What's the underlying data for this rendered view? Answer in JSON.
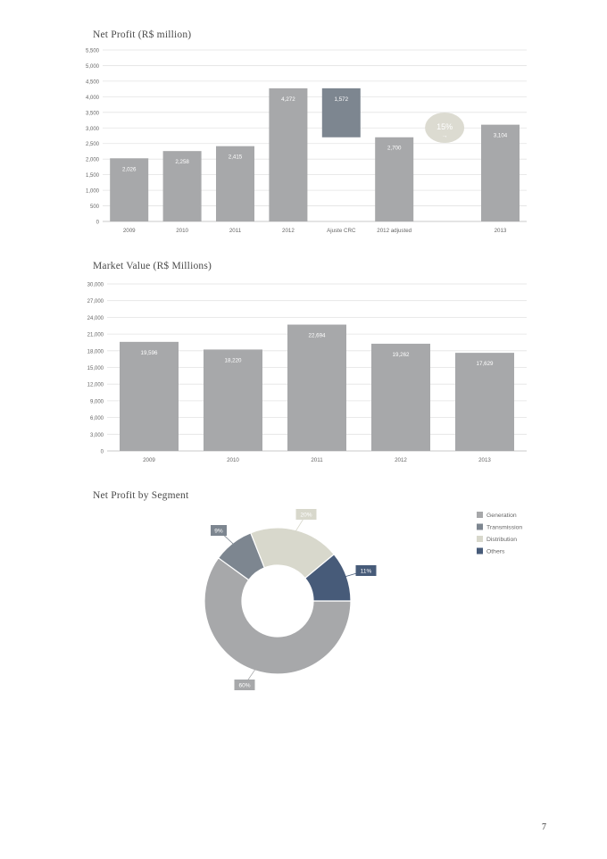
{
  "colors": {
    "bar": "#a7a8aa",
    "adjust": "#7d8690",
    "grid": "#e3e3e3",
    "axis_text": "#666666",
    "badge": "#dcdbd1",
    "generation": "#a7a8aa",
    "transmission": "#7d8690",
    "distribution": "#d8d8cc",
    "others": "#475b79"
  },
  "page_number": "7",
  "chart_data": [
    {
      "type": "bar",
      "title": "Net Profit (R$ million)",
      "categories": [
        "2009",
        "2010",
        "2011",
        "2012",
        "Ajuste CRC",
        "2012 adjusted",
        "",
        "2013"
      ],
      "values": [
        2026,
        2258,
        2415,
        4272,
        1572,
        2700,
        null,
        3104
      ],
      "value_labels": [
        "2,026",
        "2,258",
        "2,415",
        "4,272",
        "1,572",
        "2,700",
        "",
        "3,104"
      ],
      "waterfall_adjustment": {
        "category": "Ajuste CRC",
        "from": 4272,
        "to": 2700,
        "label": "1,572"
      },
      "ylim": [
        0,
        5500
      ],
      "yticks": [
        0,
        500,
        1000,
        1500,
        2000,
        2500,
        3000,
        3500,
        4000,
        4500,
        5000,
        5500
      ],
      "ytick_labels": [
        "0",
        "500",
        "1,000",
        "1,500",
        "2,000",
        "2,500",
        "3,000",
        "3,500",
        "4,000",
        "4,500",
        "5,000",
        "5,500"
      ],
      "annotation": {
        "text": "15%",
        "arrow": "→"
      },
      "grid": true
    },
    {
      "type": "bar",
      "title": "Market Value (R$ Millions)",
      "categories": [
        "2009",
        "2010",
        "2011",
        "2012",
        "2013"
      ],
      "values": [
        19596,
        18220,
        22694,
        19262,
        17629
      ],
      "value_labels": [
        "19,596",
        "18,220",
        "22,694",
        "19,262",
        "17,629"
      ],
      "ylim": [
        0,
        30000
      ],
      "yticks": [
        0,
        3000,
        6000,
        9000,
        12000,
        15000,
        18000,
        21000,
        24000,
        27000,
        30000
      ],
      "ytick_labels": [
        "0",
        "3,000",
        "6,000",
        "9,000",
        "12,000",
        "15,000",
        "18,000",
        "21,000",
        "24,000",
        "27,000",
        "30,000"
      ],
      "grid": true
    },
    {
      "type": "pie",
      "title": "Net Profit by Segment",
      "labels": [
        "Generation",
        "Transmission",
        "Distribution",
        "Others"
      ],
      "values": [
        60,
        9,
        20,
        11
      ],
      "value_labels": [
        "60%",
        "9%",
        "20%",
        "11%"
      ],
      "donut": true,
      "legend": "top-right"
    }
  ]
}
